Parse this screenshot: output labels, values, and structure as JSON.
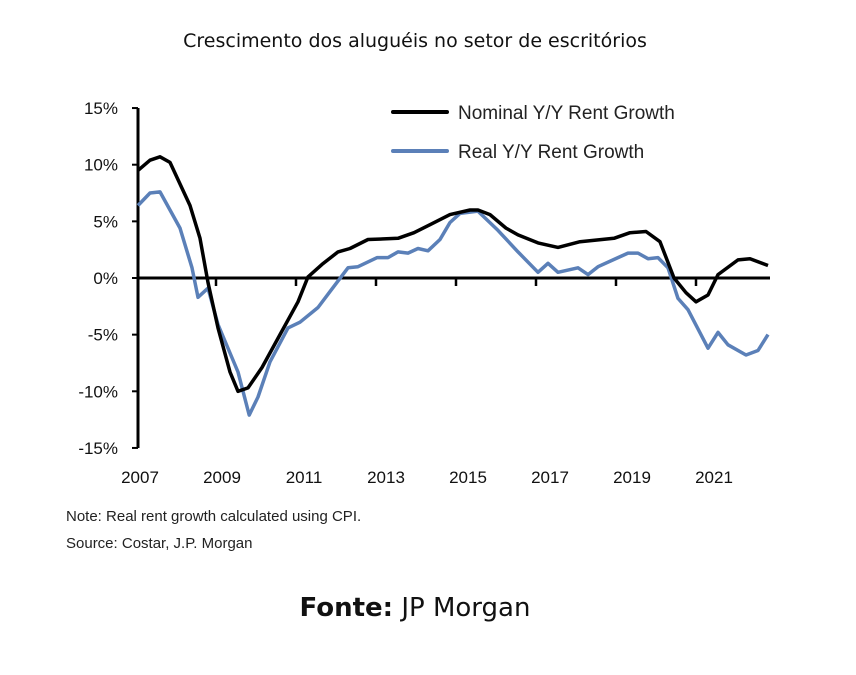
{
  "chart_data": {
    "type": "line",
    "title": "Crescimento dos aluguéis no setor de escritórios",
    "xlabel": "",
    "ylabel": "",
    "xlim": [
      2007,
      2022.75
    ],
    "ylim": [
      -15,
      15
    ],
    "x_ticks": [
      "2007",
      "2009",
      "2011",
      "2013",
      "2015",
      "2017",
      "2019",
      "2021"
    ],
    "y_ticks": [
      "15%",
      "10%",
      "5%",
      "0%",
      "-5%",
      "-10%",
      "-15%"
    ],
    "y_tick_values": [
      15,
      10,
      5,
      0,
      -5,
      -10,
      -15
    ],
    "grid": false,
    "legend": "top-right",
    "series": [
      {
        "name": "Nominal Y/Y Rent Growth",
        "color": "#000000",
        "points": [
          [
            2007.0,
            9.5
          ],
          [
            2007.3,
            10.4
          ],
          [
            2007.55,
            10.7
          ],
          [
            2007.8,
            10.2
          ],
          [
            2008.3,
            6.4
          ],
          [
            2008.55,
            3.5
          ],
          [
            2008.75,
            -0.4
          ],
          [
            2009.0,
            -4.4
          ],
          [
            2009.3,
            -8.3
          ],
          [
            2009.5,
            -10.0
          ],
          [
            2009.75,
            -9.7
          ],
          [
            2010.1,
            -7.9
          ],
          [
            2010.55,
            -5.0
          ],
          [
            2011.0,
            -2.1
          ],
          [
            2011.25,
            0.1
          ],
          [
            2011.6,
            1.2
          ],
          [
            2012.0,
            2.3
          ],
          [
            2012.3,
            2.6
          ],
          [
            2012.75,
            3.4
          ],
          [
            2013.5,
            3.5
          ],
          [
            2013.9,
            4.0
          ],
          [
            2014.3,
            4.7
          ],
          [
            2014.8,
            5.6
          ],
          [
            2015.3,
            6.0
          ],
          [
            2015.5,
            6.0
          ],
          [
            2015.8,
            5.6
          ],
          [
            2016.2,
            4.4
          ],
          [
            2016.5,
            3.8
          ],
          [
            2017.0,
            3.1
          ],
          [
            2017.5,
            2.7
          ],
          [
            2018.05,
            3.2
          ],
          [
            2018.9,
            3.5
          ],
          [
            2019.3,
            4.0
          ],
          [
            2019.7,
            4.1
          ],
          [
            2020.05,
            3.2
          ],
          [
            2020.4,
            0.0
          ],
          [
            2020.7,
            -1.3
          ],
          [
            2020.95,
            -2.1
          ],
          [
            2021.25,
            -1.5
          ],
          [
            2021.5,
            0.3
          ],
          [
            2022.0,
            1.6
          ],
          [
            2022.3,
            1.7
          ],
          [
            2022.75,
            1.1
          ]
        ]
      },
      {
        "name": "Real Y/Y Rent Growth",
        "color": "#5b80b8",
        "points": [
          [
            2007.0,
            6.4
          ],
          [
            2007.3,
            7.5
          ],
          [
            2007.55,
            7.6
          ],
          [
            2008.05,
            4.4
          ],
          [
            2008.35,
            0.9
          ],
          [
            2008.5,
            -1.7
          ],
          [
            2008.75,
            -0.9
          ],
          [
            2009.0,
            -4.1
          ],
          [
            2009.5,
            -8.3
          ],
          [
            2009.78,
            -12.1
          ],
          [
            2010.0,
            -10.5
          ],
          [
            2010.3,
            -7.4
          ],
          [
            2010.75,
            -4.4
          ],
          [
            2011.05,
            -3.9
          ],
          [
            2011.5,
            -2.6
          ],
          [
            2011.8,
            -1.2
          ],
          [
            2012.25,
            0.9
          ],
          [
            2012.5,
            1.0
          ],
          [
            2012.98,
            1.8
          ],
          [
            2013.25,
            1.8
          ],
          [
            2013.5,
            2.3
          ],
          [
            2013.75,
            2.2
          ],
          [
            2014.0,
            2.6
          ],
          [
            2014.25,
            2.4
          ],
          [
            2014.55,
            3.4
          ],
          [
            2014.8,
            4.9
          ],
          [
            2015.05,
            5.7
          ],
          [
            2015.5,
            5.9
          ],
          [
            2016.0,
            4.2
          ],
          [
            2016.5,
            2.3
          ],
          [
            2017.0,
            0.5
          ],
          [
            2017.25,
            1.3
          ],
          [
            2017.5,
            0.5
          ],
          [
            2018.0,
            0.9
          ],
          [
            2018.25,
            0.3
          ],
          [
            2018.5,
            1.0
          ],
          [
            2019.0,
            1.8
          ],
          [
            2019.25,
            2.2
          ],
          [
            2019.5,
            2.2
          ],
          [
            2019.75,
            1.7
          ],
          [
            2020.0,
            1.8
          ],
          [
            2020.25,
            0.9
          ],
          [
            2020.5,
            -1.8
          ],
          [
            2020.75,
            -2.8
          ],
          [
            2021.25,
            -6.2
          ],
          [
            2021.5,
            -4.8
          ],
          [
            2021.75,
            -5.9
          ],
          [
            2022.2,
            -6.8
          ],
          [
            2022.5,
            -6.4
          ],
          [
            2022.75,
            -5.0
          ]
        ]
      }
    ],
    "notes": [
      "Note: Real rent growth calculated using CPI.",
      "Source: Costar, J.P. Morgan"
    ]
  },
  "footer": {
    "label": "Fonte:",
    "value": " JP Morgan"
  }
}
